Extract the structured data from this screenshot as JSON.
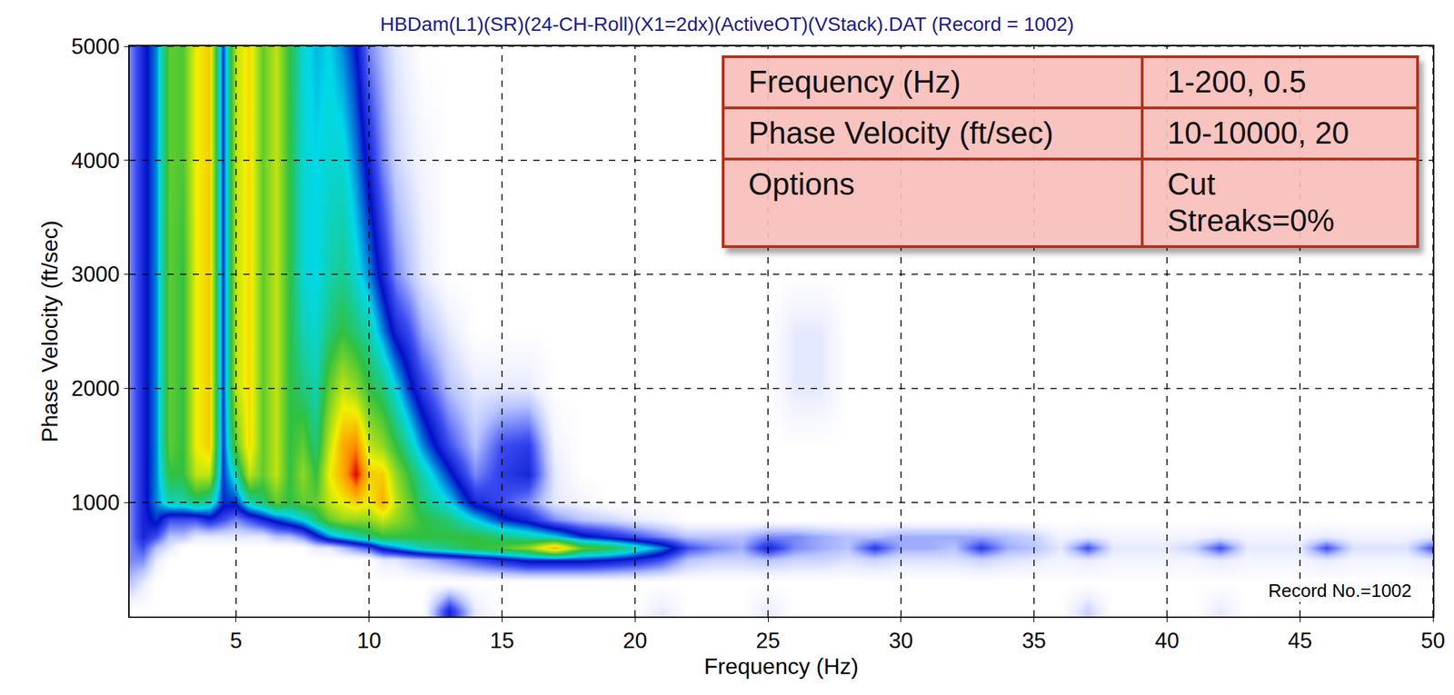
{
  "chart_data": {
    "type": "heatmap",
    "title": "HBDam(L1)(SR)(24-CH-Roll)(X1=2dx)(ActiveOT)(VStack).DAT (Record = 1002)",
    "x_label": "Frequency (Hz)",
    "y_label": "Phase Velocity (ft/sec)",
    "x": [
      1,
      1.5,
      2,
      2.5,
      3,
      3.5,
      4,
      4.5,
      5,
      5.5,
      6,
      6.5,
      7,
      7.5,
      8,
      8.5,
      9,
      9.5,
      10,
      10.5,
      11,
      11.5,
      12,
      13,
      14,
      15,
      16,
      17,
      18,
      19,
      20,
      21,
      22,
      23,
      24,
      25,
      26,
      27,
      28,
      29,
      30,
      31,
      32,
      33,
      34,
      35,
      36,
      37,
      38,
      39,
      40,
      41,
      42,
      43,
      44,
      45,
      46,
      47,
      48,
      49,
      50
    ],
    "y": [
      50,
      300,
      500,
      600,
      700,
      850,
      1000,
      1250,
      1500,
      2000,
      2500,
      3000,
      4000,
      5000
    ],
    "z": [
      [
        0,
        10,
        15,
        15,
        15,
        15,
        15,
        15,
        15,
        15,
        15,
        15,
        15,
        15
      ],
      [
        0,
        5,
        15,
        20,
        25,
        25,
        25,
        25,
        25,
        25,
        25,
        25,
        25,
        25
      ],
      [
        0,
        0,
        5,
        10,
        20,
        30,
        35,
        35,
        35,
        35,
        35,
        35,
        35,
        35
      ],
      [
        0,
        0,
        0,
        5,
        10,
        20,
        45,
        55,
        60,
        60,
        60,
        60,
        60,
        60
      ],
      [
        0,
        0,
        0,
        0,
        10,
        20,
        45,
        55,
        55,
        55,
        55,
        55,
        58,
        58
      ],
      [
        0,
        0,
        0,
        0,
        5,
        20,
        50,
        70,
        75,
        75,
        75,
        75,
        75,
        75
      ],
      [
        0,
        0,
        0,
        0,
        5,
        25,
        45,
        70,
        80,
        80,
        80,
        80,
        80,
        80
      ],
      [
        0,
        0,
        0,
        0,
        5,
        20,
        30,
        30,
        30,
        30,
        30,
        30,
        30,
        30
      ],
      [
        0,
        0,
        0,
        0,
        5,
        15,
        30,
        45,
        60,
        70,
        70,
        70,
        70,
        70
      ],
      [
        0,
        0,
        0,
        0,
        5,
        20,
        45,
        70,
        78,
        78,
        78,
        78,
        78,
        78
      ],
      [
        0,
        0,
        0,
        0,
        5,
        25,
        50,
        60,
        60,
        60,
        60,
        60,
        60,
        60
      ],
      [
        0,
        0,
        0,
        0,
        10,
        30,
        60,
        70,
        70,
        70,
        70,
        70,
        70,
        70
      ],
      [
        0,
        0,
        0,
        0,
        10,
        35,
        55,
        55,
        55,
        55,
        55,
        55,
        55,
        55
      ],
      [
        0,
        0,
        0,
        0,
        15,
        40,
        60,
        65,
        60,
        50,
        45,
        42,
        42,
        42
      ],
      [
        0,
        0,
        0,
        5,
        25,
        50,
        60,
        55,
        50,
        45,
        42,
        40,
        40,
        38
      ],
      [
        0,
        0,
        0,
        5,
        35,
        60,
        70,
        75,
        70,
        60,
        50,
        45,
        42,
        40
      ],
      [
        0,
        0,
        0,
        10,
        40,
        65,
        75,
        85,
        85,
        70,
        55,
        48,
        42,
        35
      ],
      [
        0,
        0,
        0,
        15,
        45,
        65,
        80,
        100,
        90,
        65,
        50,
        42,
        35,
        28
      ],
      [
        0,
        0,
        0,
        20,
        50,
        65,
        75,
        80,
        70,
        55,
        45,
        35,
        25,
        15
      ],
      [
        0,
        0,
        5,
        30,
        55,
        70,
        85,
        80,
        65,
        50,
        35,
        25,
        15,
        10
      ],
      [
        0,
        0,
        5,
        35,
        55,
        65,
        70,
        65,
        55,
        40,
        25,
        15,
        8,
        5
      ],
      [
        0,
        0,
        8,
        40,
        55,
        60,
        60,
        55,
        45,
        30,
        20,
        10,
        5,
        3
      ],
      [
        0,
        0,
        10,
        45,
        55,
        55,
        50,
        45,
        35,
        22,
        12,
        5,
        3,
        0
      ],
      [
        25,
        0,
        15,
        50,
        55,
        50,
        40,
        30,
        20,
        10,
        5,
        0,
        0,
        0
      ],
      [
        5,
        0,
        20,
        55,
        55,
        40,
        25,
        15,
        10,
        5,
        0,
        0,
        0,
        0
      ],
      [
        0,
        0,
        25,
        58,
        50,
        30,
        20,
        22,
        20,
        5,
        0,
        0,
        0,
        0
      ],
      [
        0,
        0,
        30,
        65,
        45,
        25,
        15,
        25,
        22,
        5,
        0,
        0,
        0,
        0
      ],
      [
        0,
        0,
        30,
        85,
        40,
        15,
        5,
        5,
        3,
        0,
        0,
        0,
        0,
        0
      ],
      [
        0,
        0,
        30,
        60,
        30,
        10,
        3,
        0,
        0,
        0,
        0,
        0,
        0,
        0
      ],
      [
        0,
        0,
        28,
        55,
        25,
        8,
        0,
        0,
        0,
        0,
        0,
        0,
        0,
        0
      ],
      [
        0,
        0,
        25,
        45,
        20,
        5,
        0,
        0,
        0,
        0,
        0,
        0,
        0,
        0
      ],
      [
        5,
        0,
        20,
        35,
        15,
        3,
        0,
        0,
        0,
        0,
        0,
        0,
        0,
        0
      ],
      [
        0,
        0,
        10,
        20,
        10,
        0,
        0,
        0,
        0,
        0,
        0,
        0,
        0,
        0
      ],
      [
        0,
        0,
        8,
        15,
        10,
        0,
        0,
        0,
        0,
        0,
        0,
        0,
        0,
        0
      ],
      [
        0,
        0,
        8,
        12,
        10,
        0,
        0,
        0,
        0,
        0,
        0,
        0,
        0,
        0
      ],
      [
        5,
        0,
        10,
        25,
        15,
        0,
        0,
        0,
        0,
        0,
        0,
        0,
        0,
        0
      ],
      [
        0,
        0,
        8,
        15,
        15,
        0,
        0,
        0,
        0,
        5,
        5,
        0,
        0,
        0
      ],
      [
        0,
        0,
        8,
        12,
        12,
        0,
        0,
        0,
        0,
        5,
        5,
        0,
        0,
        0
      ],
      [
        0,
        0,
        6,
        10,
        10,
        0,
        0,
        0,
        0,
        0,
        0,
        0,
        0,
        0
      ],
      [
        0,
        0,
        8,
        22,
        10,
        0,
        0,
        0,
        0,
        0,
        0,
        0,
        0,
        0
      ],
      [
        0,
        0,
        6,
        12,
        12,
        0,
        0,
        0,
        0,
        0,
        0,
        0,
        0,
        0
      ],
      [
        0,
        0,
        6,
        12,
        12,
        0,
        0,
        0,
        0,
        0,
        0,
        0,
        0,
        0
      ],
      [
        0,
        0,
        6,
        10,
        12,
        0,
        0,
        0,
        0,
        0,
        0,
        0,
        0,
        0
      ],
      [
        0,
        0,
        8,
        22,
        12,
        0,
        0,
        0,
        0,
        0,
        0,
        0,
        0,
        0
      ],
      [
        0,
        0,
        6,
        12,
        10,
        0,
        0,
        0,
        0,
        0,
        0,
        0,
        0,
        0
      ],
      [
        0,
        0,
        5,
        10,
        8,
        0,
        0,
        0,
        0,
        0,
        0,
        0,
        0,
        0
      ],
      [
        0,
        0,
        3,
        5,
        3,
        0,
        0,
        0,
        0,
        0,
        0,
        0,
        0,
        0
      ],
      [
        8,
        0,
        5,
        20,
        5,
        0,
        0,
        0,
        0,
        0,
        0,
        0,
        0,
        0
      ],
      [
        0,
        0,
        3,
        5,
        3,
        0,
        0,
        0,
        0,
        0,
        0,
        0,
        0,
        0
      ],
      [
        0,
        0,
        3,
        5,
        3,
        0,
        0,
        0,
        0,
        0,
        0,
        0,
        0,
        0
      ],
      [
        0,
        0,
        3,
        5,
        3,
        0,
        0,
        0,
        0,
        0,
        0,
        0,
        0,
        0
      ],
      [
        0,
        0,
        3,
        8,
        3,
        0,
        0,
        0,
        0,
        0,
        0,
        0,
        0,
        0
      ],
      [
        5,
        0,
        5,
        20,
        5,
        0,
        0,
        0,
        0,
        0,
        0,
        0,
        0,
        0
      ],
      [
        0,
        0,
        3,
        5,
        3,
        0,
        0,
        0,
        0,
        0,
        0,
        0,
        0,
        0
      ],
      [
        0,
        0,
        3,
        5,
        3,
        0,
        0,
        0,
        0,
        0,
        0,
        0,
        0,
        0
      ],
      [
        0,
        0,
        3,
        5,
        3,
        0,
        0,
        0,
        0,
        0,
        0,
        0,
        0,
        0
      ],
      [
        0,
        0,
        5,
        20,
        5,
        0,
        0,
        0,
        0,
        0,
        0,
        0,
        0,
        0
      ],
      [
        0,
        0,
        3,
        6,
        3,
        0,
        0,
        0,
        0,
        0,
        0,
        0,
        0,
        0
      ],
      [
        0,
        0,
        3,
        6,
        3,
        0,
        0,
        0,
        0,
        0,
        0,
        0,
        0,
        0
      ],
      [
        0,
        0,
        3,
        6,
        3,
        0,
        0,
        0,
        0,
        0,
        0,
        0,
        0,
        0
      ],
      [
        0,
        0,
        5,
        20,
        5,
        0,
        0,
        0,
        0,
        0,
        0,
        0,
        0,
        0
      ]
    ],
    "xlim": [
      1,
      50
    ],
    "ylim": [
      0,
      5000
    ],
    "xticks": [
      5,
      10,
      15,
      20,
      25,
      30,
      35,
      40,
      45,
      50
    ],
    "yticks": [
      1000,
      2000,
      3000,
      4000,
      5000
    ],
    "grid": true,
    "annotations": [
      {
        "text": "Record No.=1002"
      }
    ]
  },
  "table": {
    "rows": [
      [
        "Frequency (Hz)",
        "1-200, 0.5"
      ],
      [
        "Phase Velocity (ft/sec)",
        "10-10000, 20"
      ],
      [
        "Options",
        [
          "Cut",
          "Streaks=0%"
        ]
      ]
    ]
  }
}
